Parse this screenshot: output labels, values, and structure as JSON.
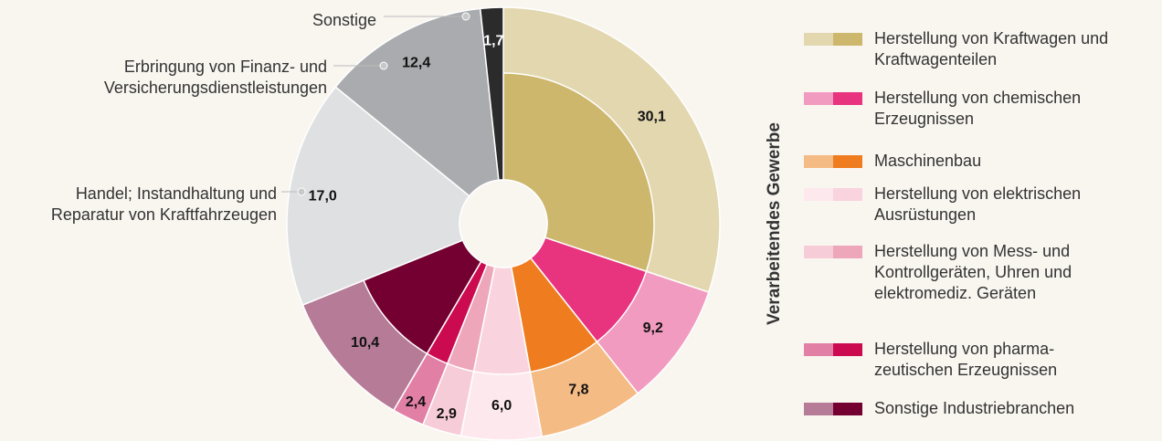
{
  "chart_data": {
    "type": "pie",
    "legend_title": "Verarbeitendes Gewerbe",
    "manufacturing": {
      "categories": [
        "Herstellung von Kraftwagen und\nKraftwagenteilen",
        "Herstellung von chemischen\nErzeugnissen",
        "Maschinenbau",
        "Herstellung von elektrischen\nAusrüstungen",
        "Herstellung von Mess- und\nKontrollgeräten, Uhren und\nelektromediz. Geräten",
        "Herstellung von pharma-\nzeutischen Erzeugnissen",
        "Sonstige Industriebranchen"
      ],
      "values": [
        30.1,
        9.2,
        7.8,
        6.0,
        2.9,
        2.4,
        10.4
      ],
      "value_labels": [
        "30,1",
        "9,2",
        "7,8",
        "6,0",
        "2,9",
        "2,4",
        "10,4"
      ],
      "colors": [
        "#e3d7b0",
        "#f29bc0",
        "#f5bb85",
        "#fde8ee",
        "#f6ccd8",
        "#e27fa5",
        "#b57b97"
      ],
      "inner_colors": [
        "#cdb76d",
        "#e8337f",
        "#ef7d1f",
        "#f9d3de",
        "#eda6ba",
        "#cc0a4f",
        "#730030"
      ]
    },
    "other": {
      "categories": [
        "Handel; Instandhaltung und\nReparatur von Kraftfahrzeugen",
        "Erbringung von Finanz- und\nVersicherungsdienstleistungen",
        "Sonstige"
      ],
      "values": [
        17.0,
        12.4,
        1.7
      ],
      "value_labels": [
        "17,0",
        "12,4",
        "1,7"
      ],
      "colors": [
        "#dfe0e2",
        "#a9abae",
        "#2b2b2b"
      ]
    }
  }
}
